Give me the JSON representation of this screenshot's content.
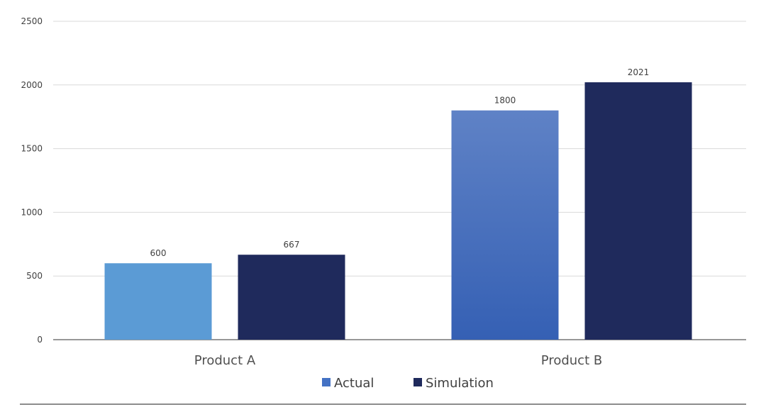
{
  "chart_data": {
    "type": "bar",
    "categories": [
      "Product A",
      "Product B"
    ],
    "series": [
      {
        "name": "Actual",
        "values": [
          600,
          1800
        ],
        "colors": [
          "#5b9bd5",
          "#3f6fbd"
        ],
        "legend_color": "#4472c4"
      },
      {
        "name": "Simulation",
        "values": [
          667,
          2021
        ],
        "colors": [
          "#1f2a5c",
          "#1f2a5c"
        ],
        "legend_color": "#1f2a5c"
      }
    ],
    "title": "",
    "xlabel": "",
    "ylabel": "",
    "ylim": [
      0,
      2500
    ],
    "yticks": [
      0,
      500,
      1000,
      1500,
      2000,
      2500
    ],
    "grid": true,
    "legend_position": "bottom",
    "data_labels": true
  }
}
